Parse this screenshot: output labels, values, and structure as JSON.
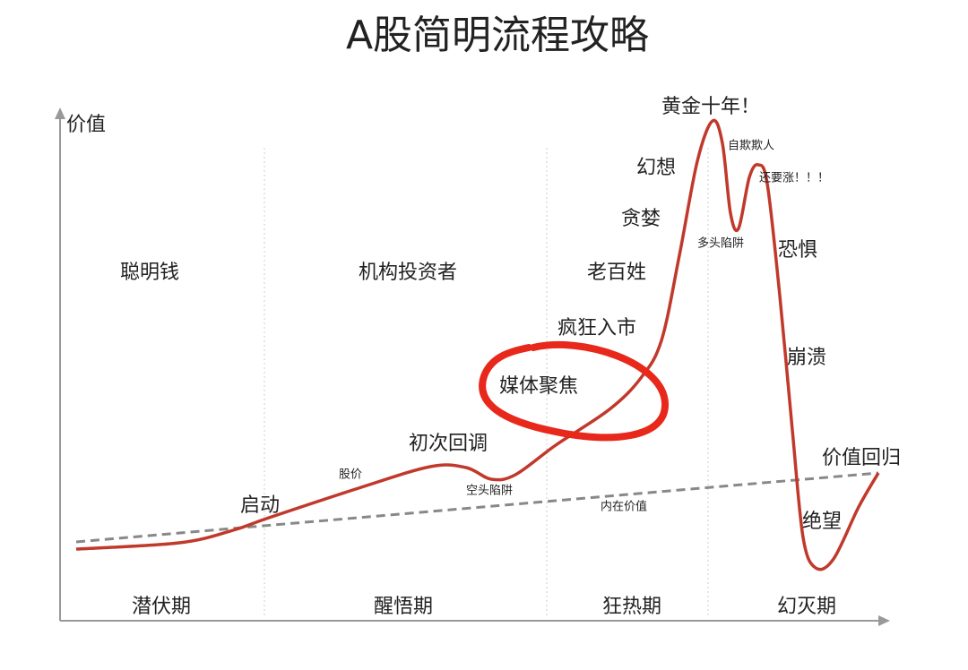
{
  "header": {
    "title": "A股简明流程攻略"
  },
  "axis": {
    "y_label": "价值"
  },
  "participants": [
    "聪明钱",
    "机构投资者",
    "老百姓"
  ],
  "phases": [
    "潜伏期",
    "醒悟期",
    "狂热期",
    "幻灭期"
  ],
  "annotations": {
    "start": "启动",
    "price": "股价",
    "first_pullback": "初次回调",
    "bear_trap": "空头陷阱",
    "media_focus": "媒体聚焦",
    "frenzy": "疯狂入市",
    "greed": "贪婪",
    "fantasy": "幻想",
    "golden_decade": "黄金十年！",
    "self_deception": "自欺欺人",
    "bull_trap": "多头陷阱",
    "still_rising": "还要涨！！！",
    "fear": "恐惧",
    "collapse": "崩溃",
    "despair": "绝望",
    "return_to_value": "价值回归",
    "intrinsic_value": "内在价值"
  }
}
